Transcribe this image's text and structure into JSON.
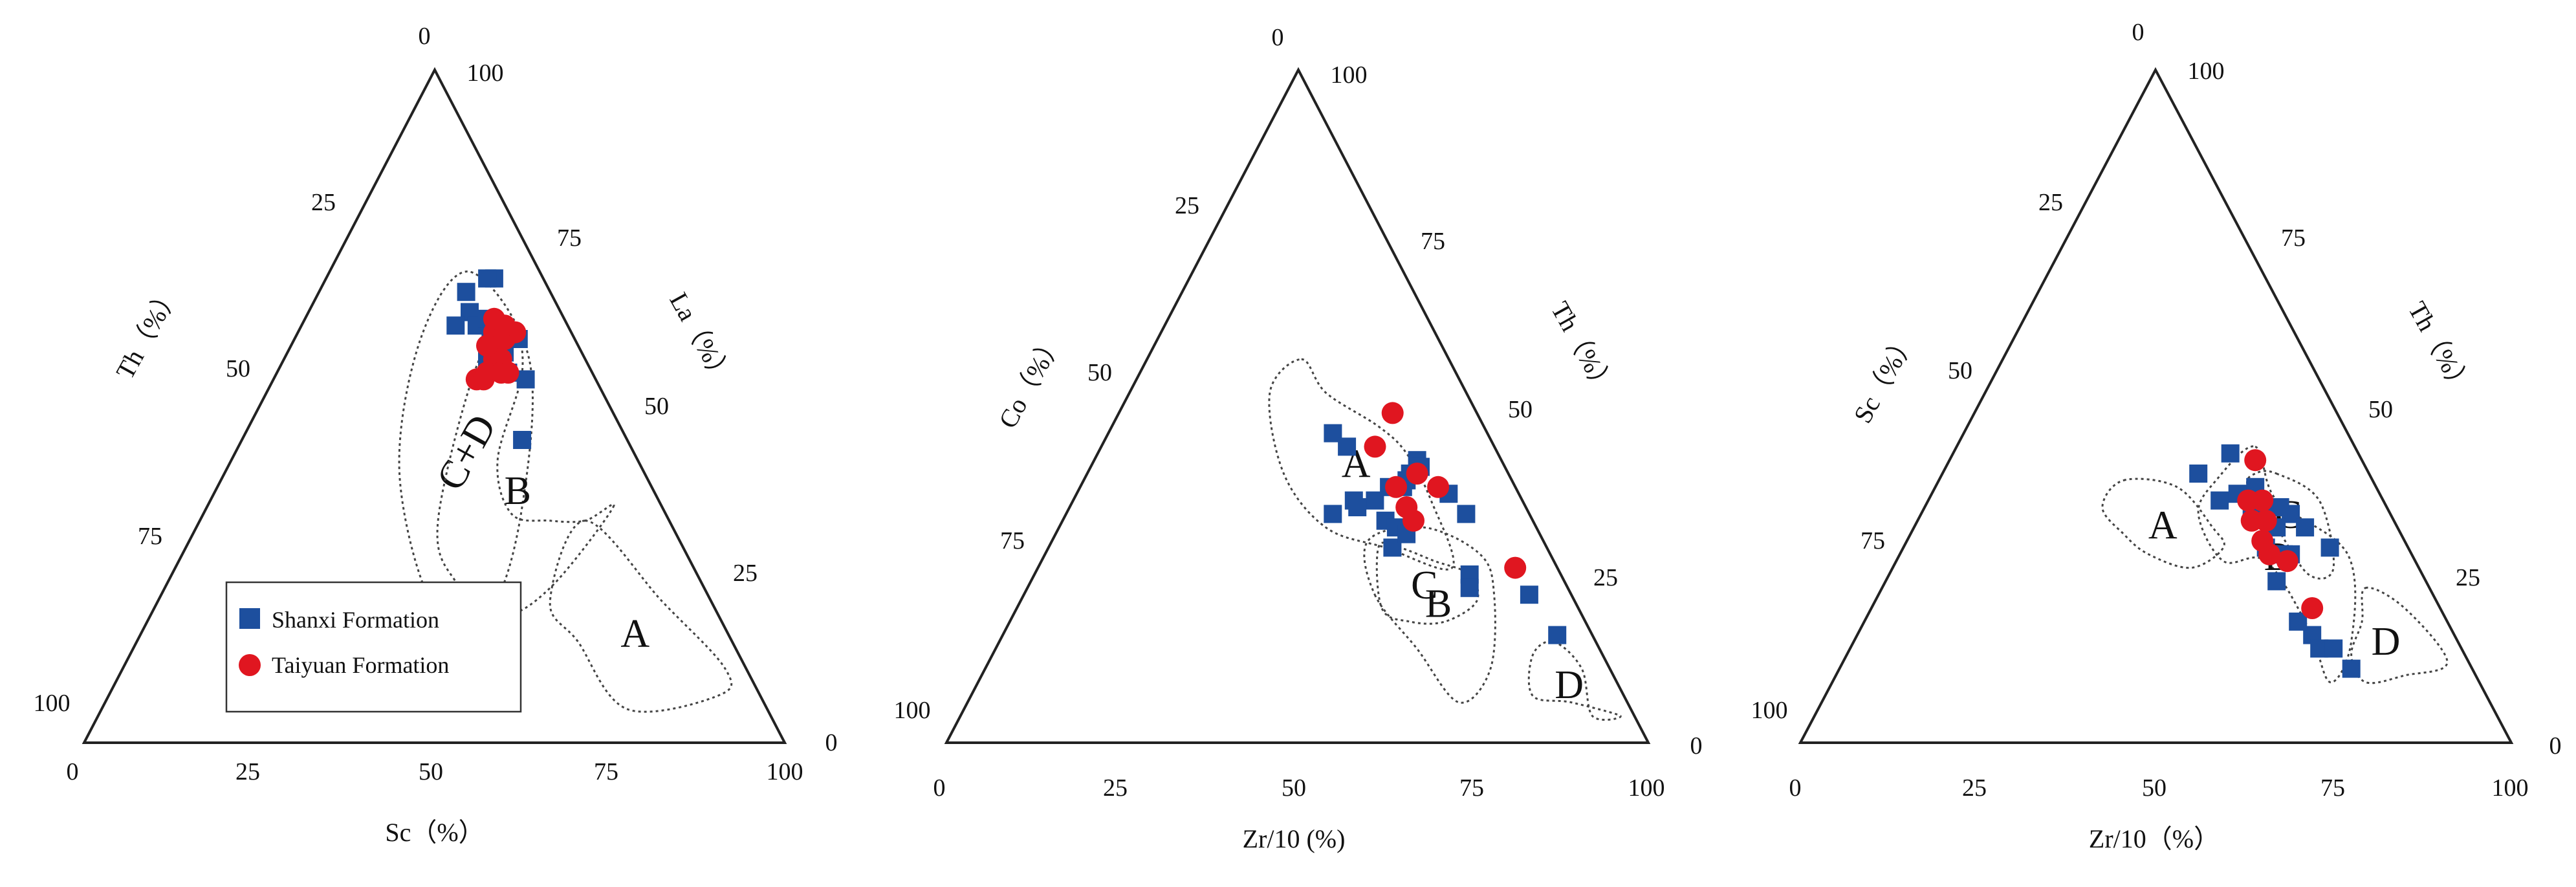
{
  "legend": {
    "items": [
      {
        "label": "Shanxi Formation",
        "color": "#1d4f9e",
        "marker": "square"
      },
      {
        "label": "Taiyuan Formation",
        "color": "#e01620",
        "marker": "circle"
      }
    ]
  },
  "chart_data": [
    {
      "type": "scatter",
      "subtype": "ternary",
      "components": [
        "Sc",
        "Th",
        "La"
      ],
      "bottom_axis_label": "Sc（%）",
      "left_axis_label": "Th（%）",
      "right_axis_label": "La（%）",
      "bottom_ticks": [
        "0",
        "25",
        "50",
        "75",
        "100"
      ],
      "left_ticks": [
        "0",
        "25",
        "50",
        "75",
        "100"
      ],
      "right_ticks": [
        "100",
        "75",
        "50",
        "25",
        "0"
      ],
      "fields": [
        {
          "label": "C+D",
          "polygon": [
            [
              48,
              32,
              20
            ],
            [
              45,
              20,
              35
            ],
            [
              35,
              8,
              57
            ],
            [
              20,
              10,
              70
            ],
            [
              18,
              22,
              60
            ],
            [
              25,
              35,
              40
            ],
            [
              40,
              40,
              20
            ]
          ]
        },
        {
          "label": "B",
          "polygon": [
            [
              58,
              7,
              35
            ],
            [
              55,
              12,
              33
            ],
            [
              50,
              17,
              33
            ],
            [
              44,
              22,
              34
            ],
            [
              38,
              20,
              42
            ],
            [
              35,
              10,
              55
            ],
            [
              30,
              8,
              62
            ],
            [
              28,
              16,
              56
            ],
            [
              34,
              33,
              33
            ],
            [
              41,
              35,
              24
            ],
            [
              50,
              31,
              19
            ],
            [
              55,
              22,
              23
            ]
          ]
        },
        {
          "label": "A",
          "polygon": [
            [
              55,
              12,
              33
            ],
            [
              72,
              7,
              21
            ],
            [
              86,
              3,
              11
            ],
            [
              87,
              6,
              7
            ],
            [
              75,
              20,
              5
            ],
            [
              63,
              22,
              15
            ],
            [
              56,
              23,
              21
            ]
          ]
        }
      ],
      "series": [
        {
          "name": "Shanxi Formation",
          "points": [
            [
              24,
              7,
              69
            ],
            [
              23,
              8,
              69
            ],
            [
              23,
              13,
              64
            ],
            [
              21,
              12,
              67
            ],
            [
              22,
              16,
              62
            ],
            [
              27,
              11,
              62
            ],
            [
              28,
              12,
              60
            ],
            [
              25,
              13,
              62
            ],
            [
              26,
              11,
              63
            ],
            [
              28,
              10,
              62
            ],
            [
              29,
              10,
              61
            ],
            [
              30,
              9,
              61
            ],
            [
              31,
              11,
              58
            ],
            [
              30,
              14,
              56
            ],
            [
              30,
              13,
              57
            ],
            [
              36,
              10,
              54
            ],
            [
              29,
              14,
              57
            ],
            [
              33,
              12,
              55
            ],
            [
              30,
              12,
              58
            ],
            [
              32,
              8,
              60
            ],
            [
              29,
              11,
              60
            ],
            [
              40,
              15,
              45
            ]
          ]
        },
        {
          "name": "Taiyuan Formation",
          "points": [
            [
              29,
              12,
              59
            ],
            [
              28,
              11,
              61
            ],
            [
              27,
              10,
              63
            ],
            [
              30,
              13,
              57
            ],
            [
              31,
              12,
              57
            ],
            [
              30,
              15,
              55
            ],
            [
              29,
              17,
              54
            ],
            [
              30,
              16,
              54
            ],
            [
              28,
              13,
              59
            ],
            [
              32,
              13,
              55
            ],
            [
              33,
              12,
              55
            ],
            [
              30,
              10,
              60
            ],
            [
              31,
              8,
              61
            ],
            [
              29,
              9,
              62
            ]
          ]
        }
      ]
    },
    {
      "type": "scatter",
      "subtype": "ternary",
      "components": [
        "Zr/10",
        "Co",
        "Th"
      ],
      "bottom_axis_label": "Zr/10 (%)",
      "left_axis_label": "Co（%）",
      "right_axis_label": "Th（%）",
      "bottom_ticks": [
        "0",
        "25",
        "50",
        "75",
        "100"
      ],
      "left_ticks": [
        "0",
        "25",
        "50",
        "75",
        "100"
      ],
      "right_ticks": [
        "100",
        "75",
        "50",
        "25",
        "0"
      ],
      "fields": [
        {
          "label": "C",
          "polygon": [
            [
              47,
              24,
              29
            ],
            [
              50,
              21,
              29
            ],
            [
              56,
              17,
              27
            ],
            [
              62,
              13,
              25
            ],
            [
              65,
              14,
              21
            ],
            [
              62,
              20,
              18
            ],
            [
              57,
              25,
              18
            ],
            [
              52,
              28,
              20
            ]
          ]
        },
        {
          "label": "B",
          "polygon": [
            [
              50,
              28,
              22
            ],
            [
              60,
              26,
              14
            ],
            [
              70,
              24,
              6
            ],
            [
              72,
              17,
              11
            ],
            [
              67,
              11,
              22
            ],
            [
              62,
              10,
              28
            ],
            [
              52,
              16,
              32
            ],
            [
              45,
              25,
              30
            ]
          ]
        },
        {
          "label": "D",
          "polygon": [
            [
              79,
              6,
              15
            ],
            [
              85,
              4,
              11
            ],
            [
              90,
              6,
              4
            ],
            [
              94,
              2,
              4
            ],
            [
              86,
              8,
              6
            ],
            [
              80,
              13,
              7
            ],
            [
              77,
              10,
              13
            ]
          ]
        },
        {
          "label": "A",
          "polygon": [
            [
              22,
              21,
              57
            ],
            [
              28,
              20,
              52
            ],
            [
              38,
              15,
              47
            ],
            [
              44,
              13,
              43
            ],
            [
              51,
              13,
              36
            ],
            [
              59,
              15,
              26
            ],
            [
              48,
              23,
              29
            ],
            [
              38,
              30,
              32
            ],
            [
              28,
              32,
              40
            ],
            [
              20,
              28,
              52
            ]
          ]
        }
      ],
      "series": [
        {
          "name": "Shanxi Formation",
          "points": [
            [
              46,
              12,
              42
            ],
            [
              53,
              10,
              37
            ],
            [
              57,
              9,
              34
            ],
            [
              62,
              13,
              25
            ],
            [
              63,
              14,
              23
            ],
            [
              72,
              6,
              22
            ],
            [
              79,
              5,
              16
            ],
            [
              47,
              12,
              41
            ],
            [
              46,
              15,
              39
            ],
            [
              46,
              21,
              33
            ],
            [
              44,
              18,
              38
            ],
            [
              43,
              21,
              36
            ],
            [
              40,
              24,
              36
            ],
            [
              32,
              22,
              46
            ],
            [
              35,
              21,
              44
            ],
            [
              46,
              16,
              38
            ],
            [
              46,
              14,
              40
            ],
            [
              38,
              28,
              34
            ],
            [
              41,
              24,
              35
            ],
            [
              49,
              22,
              29
            ],
            [
              48,
              20,
              32
            ],
            [
              50,
              19,
              31
            ]
          ]
        },
        {
          "name": "Taiyuan Formation",
          "points": [
            [
              39,
              17,
              44
            ],
            [
              39,
              12,
              49
            ],
            [
              51,
              11,
              38
            ],
            [
              50,
              17,
              33
            ],
            [
              48,
              17,
              35
            ],
            [
              45,
              17,
              38
            ],
            [
              47,
              13,
              40
            ],
            [
              68,
              6,
              26
            ]
          ]
        }
      ]
    },
    {
      "type": "scatter",
      "subtype": "ternary",
      "components": [
        "Zr/10",
        "Sc",
        "Th"
      ],
      "bottom_axis_label": "Zr/10（%）",
      "left_axis_label": "Sc（%）",
      "right_axis_label": "Th（%）",
      "bottom_ticks": [
        "0",
        "25",
        "50",
        "75",
        "100"
      ],
      "left_ticks": [
        "0",
        "25",
        "50",
        "75",
        "100"
      ],
      "right_ticks": [
        "100",
        "75",
        "50",
        "25",
        "0"
      ],
      "fields": [
        {
          "label": "C",
          "polygon": [
            [
              47,
              13,
              40
            ],
            [
              55,
              9,
              36
            ],
            [
              62,
              12,
              26
            ],
            [
              59,
              16,
              25
            ],
            [
              51,
              17,
              32
            ],
            [
              44,
              18,
              38
            ],
            [
              44,
              16,
              40
            ]
          ]
        },
        {
          "label": "B",
          "polygon": [
            [
              42,
              14,
              44
            ],
            [
              49,
              15,
              36
            ],
            [
              63,
              9,
              28
            ],
            [
              70,
              15,
              15
            ],
            [
              70,
              21,
              9
            ],
            [
              63,
              20,
              17
            ],
            [
              52,
              21,
              27
            ],
            [
              46,
              27,
              27
            ],
            [
              39,
              27,
              34
            ],
            [
              39,
              22,
              39
            ]
          ]
        },
        {
          "label": "D",
          "polygon": [
            [
              68,
              9,
              23
            ],
            [
              75,
              5,
              20
            ],
            [
              85,
              3,
              12
            ],
            [
              80,
              10,
              10
            ],
            [
              75,
              16,
              9
            ],
            [
              71,
              16,
              13
            ],
            [
              70,
              12,
              18
            ]
          ]
        },
        {
          "label": "A",
          "polygon": [
            [
              26,
              35,
              39
            ],
            [
              34,
              28,
              38
            ],
            [
              42,
              26,
              32
            ],
            [
              45,
              26,
              29
            ],
            [
              42,
              32,
              26
            ],
            [
              35,
              37,
              28
            ],
            [
              30,
              39,
              31
            ],
            [
              25,
              40,
              35
            ]
          ]
        }
      ],
      "series": [
        {
          "name": "Shanxi Formation",
          "points": [
            [
              39,
              18,
              43
            ],
            [
              41,
              23,
              36
            ],
            [
              43,
              20,
              37
            ],
            [
              45,
              17,
              38
            ],
            [
              46,
              19,
              35
            ],
            [
              48,
              17,
              35
            ],
            [
              50,
              15,
              35
            ],
            [
              52,
              14,
              34
            ],
            [
              55,
              13,
              32
            ],
            [
              60,
              11,
              29
            ],
            [
              51,
              20,
              29
            ],
            [
              53,
              19,
              28
            ],
            [
              54,
              18,
              28
            ],
            [
              55,
              17,
              28
            ],
            [
              55,
              21,
              24
            ],
            [
              64,
              20,
              16
            ],
            [
              66,
              20,
              14
            ],
            [
              68,
              18,
              14
            ],
            [
              72,
              17,
              11
            ],
            [
              61,
              21,
              18
            ],
            [
              51,
              17,
              32
            ],
            [
              36,
              24,
              40
            ]
          ]
        },
        {
          "name": "Taiyuan Formation",
          "points": [
            [
              43,
              15,
              42
            ],
            [
              47,
              17,
              36
            ],
            [
              45,
              19,
              36
            ],
            [
              47,
              20,
              33
            ],
            [
              49,
              18,
              33
            ],
            [
              50,
              20,
              30
            ],
            [
              55,
              18,
              27
            ],
            [
              52,
              20,
              28
            ],
            [
              62,
              18,
              20
            ]
          ]
        }
      ]
    }
  ]
}
